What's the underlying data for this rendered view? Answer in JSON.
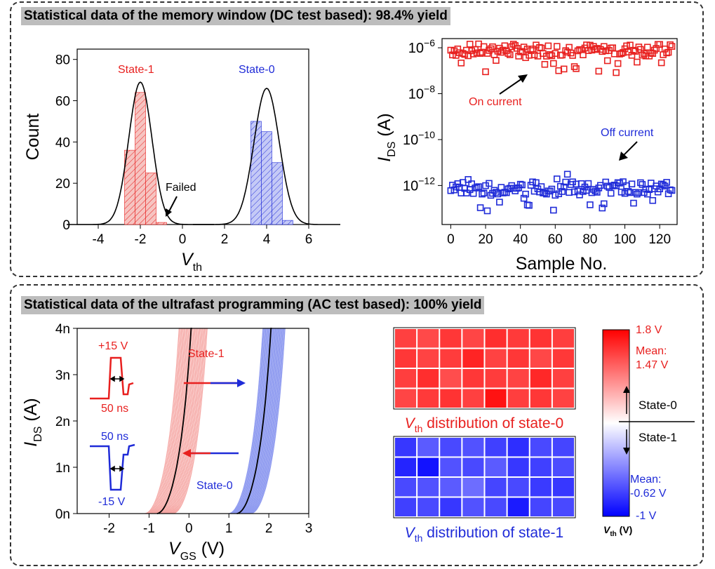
{
  "banners": {
    "top": "Statistical data of the memory window (DC test based): 98.4% yield",
    "bottom": "Statistical data of the ultrafast programming (AC test based): 100% yield"
  },
  "colors": {
    "red": "#e8201f",
    "blue": "#1f2bd8",
    "pink": "#f5a6a3",
    "lightblue": "#8f9bf0"
  },
  "chart_data": [
    {
      "type": "bar",
      "title": "",
      "xlabel": "V_th",
      "ylabel": "Count",
      "xlim": [
        -5,
        6
      ],
      "ylim": [
        0,
        85
      ],
      "xticks": [
        "-4",
        "-2",
        "0",
        "2",
        "4",
        "6"
      ],
      "yticks": [
        "0",
        "20",
        "40",
        "60",
        "80"
      ],
      "bin_width": 0.5,
      "series": [
        {
          "name": "State-1",
          "color": "#e8201f",
          "bins": [
            [
              -2.5,
              36
            ],
            [
              -2.0,
              64
            ],
            [
              -1.5,
              25
            ],
            [
              -1.0,
              1
            ]
          ]
        },
        {
          "name": "State-0",
          "color": "#1f2bd8",
          "bins": [
            [
              3.5,
              50
            ],
            [
              4.0,
              45
            ],
            [
              4.5,
              30
            ],
            [
              5.0,
              2
            ]
          ]
        }
      ],
      "fits": [
        {
          "center": -2.0,
          "sigma": 0.55,
          "peak": 69
        },
        {
          "center": 4.0,
          "sigma": 0.6,
          "peak": 66
        }
      ],
      "annotations": {
        "state1": "State-1",
        "state0": "State-0",
        "failed": "Failed"
      }
    },
    {
      "type": "scatter",
      "xlabel": "Sample No.",
      "ylabel": "I_DS (A)",
      "y_scale": "log",
      "xlim": [
        -5,
        130
      ],
      "ylim_log10": [
        -13.7,
        -5.6
      ],
      "xticks": [
        "0",
        "20",
        "40",
        "60",
        "80",
        "100",
        "120"
      ],
      "yticks": [
        "10^-12",
        "10^-10",
        "10^-8",
        "10^-6"
      ],
      "series": [
        {
          "name": "On current",
          "color": "#e8201f",
          "center_log10": -6.1,
          "n": 128
        },
        {
          "name": "Off current",
          "color": "#1f2bd8",
          "center_log10": -12.1,
          "n": 128
        }
      ],
      "annotations": {
        "on": "On current",
        "off": "Off current"
      }
    },
    {
      "type": "line",
      "xlabel": "V_GS (V)",
      "ylabel": "I_DS (A)",
      "xlim": [
        -2.8,
        3
      ],
      "ylim": [
        0,
        4
      ],
      "xticks": [
        "-2",
        "-1",
        "0",
        "1",
        "2",
        "3"
      ],
      "yticks": [
        "0n",
        "1n",
        "2n",
        "3n",
        "4n"
      ],
      "series": [
        {
          "name": "State-1",
          "color": "#f5a6a3",
          "onset_range": [
            -1.1,
            -0.4
          ],
          "mean_onset": -0.8,
          "count": 24
        },
        {
          "name": "State-0",
          "color": "#8f9bf0",
          "onset_range": [
            1.0,
            1.55
          ],
          "mean_onset": 1.2,
          "count": 24
        }
      ],
      "annotations": {
        "state1": "State-1",
        "state0": "State-0",
        "pulse_pos": "+15 V",
        "pulse_pos_width": "50 ns",
        "pulse_neg_width": "50 ns",
        "pulse_neg": "-15 V"
      }
    },
    {
      "type": "heatmap",
      "caption": "distribution of state-0",
      "caption_symbol": "V",
      "caption_sub": "th",
      "rows": 4,
      "cols": 8,
      "values": [
        [
          1.45,
          1.4,
          1.5,
          1.42,
          1.55,
          1.48,
          1.52,
          1.46
        ],
        [
          1.5,
          1.43,
          1.47,
          1.6,
          1.44,
          1.5,
          1.41,
          1.49
        ],
        [
          1.46,
          1.55,
          1.38,
          1.5,
          1.47,
          1.43,
          1.58,
          1.45
        ],
        [
          1.42,
          1.48,
          1.52,
          1.45,
          1.7,
          1.46,
          1.5,
          1.44
        ]
      ]
    },
    {
      "type": "heatmap",
      "caption": "distribution of state-1",
      "caption_symbol": "V",
      "caption_sub": "th",
      "rows": 4,
      "cols": 8,
      "values": [
        [
          -0.7,
          -0.5,
          -0.6,
          -0.55,
          -0.65,
          -0.75,
          -0.6,
          -0.62
        ],
        [
          -0.8,
          -0.9,
          -0.55,
          -0.6,
          -0.5,
          -0.7,
          -0.65,
          -0.58
        ],
        [
          -0.6,
          -0.55,
          -0.5,
          -0.4,
          -0.62,
          -0.6,
          -0.68,
          -0.7
        ],
        [
          -0.65,
          -0.6,
          -0.7,
          -0.55,
          -0.6,
          -0.85,
          -0.62,
          -0.6
        ]
      ]
    }
  ],
  "colorbar": {
    "max_label": "1.8 V",
    "min_label": "-1 V",
    "mean0_line1": "Mean:",
    "mean0_line2": "1.47 V",
    "mean1_line1": "Mean:",
    "mean1_line2": "-0.62 V",
    "state0": "State-0",
    "state1": "State-1",
    "label_symbol": "V",
    "label_sub": "th",
    "label_unit": " (V)",
    "range": [
      -1,
      1.8
    ]
  }
}
